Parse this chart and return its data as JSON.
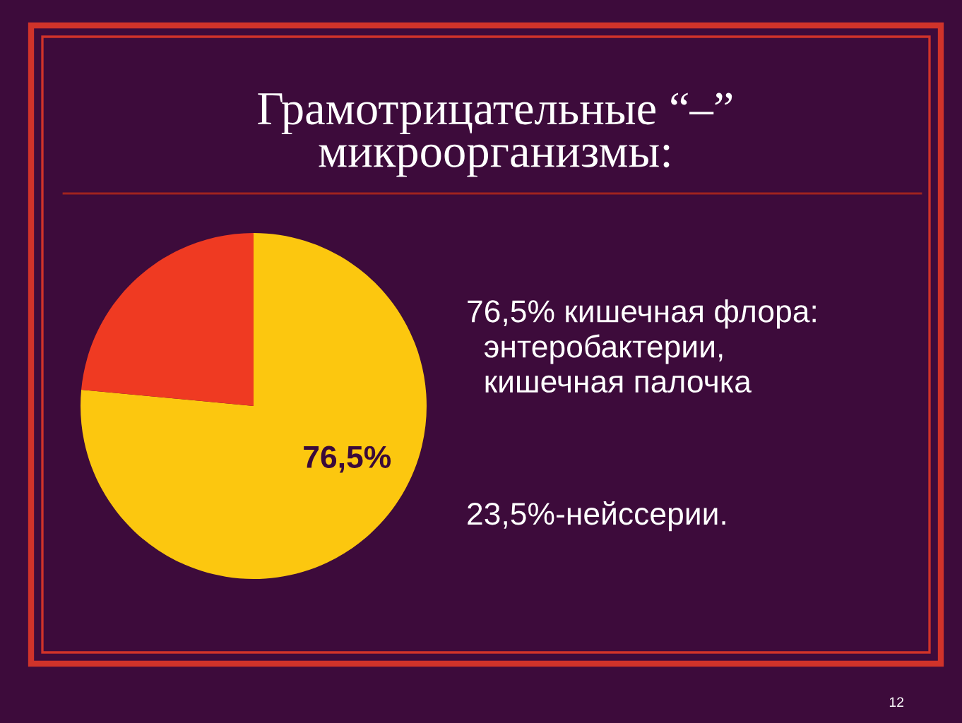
{
  "chart_data": {
    "type": "pie",
    "title": "Грамотрицательные “–”\nмикроорганизмы:",
    "categories": [
      null,
      null
    ],
    "values": [
      76.5,
      23.5
    ],
    "colors": [
      "#fcc70f",
      "#ef3a22"
    ],
    "value_labels": [
      "76,5%",
      null
    ],
    "legend": false,
    "annotations": [
      "76,5% кишечная флора:\n  энтеробактерии,\n  кишечная палочка",
      "23,5%-нейссерии.",
      "12"
    ]
  }
}
